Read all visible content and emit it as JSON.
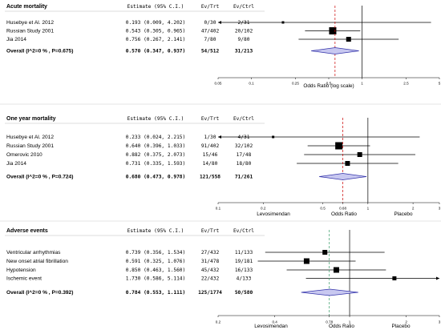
{
  "chart_data": [
    {
      "type": "forest",
      "title": "Acute mortality",
      "column_headers": [
        "Estimate (95% C.I.)",
        "Ev/Trt",
        "Ev/Ctrl"
      ],
      "scale": "log",
      "xlabel": "Odds Ratio (log scale)",
      "xlim": [
        0.05,
        5
      ],
      "ticks": [
        "0.05",
        "0.1",
        "0.25",
        "0.5",
        "1",
        "2.5",
        "5"
      ],
      "null_line": 1,
      "pooled_line": 0.57,
      "pooled_line_label": "",
      "xlabel_left": "",
      "xlabel_right": "",
      "studies": [
        {
          "name": "Husebye et Al. 2012",
          "estimate": "0.193 (0.009, 4.202)",
          "ev_trt": "0/30",
          "ev_ctrl": "2/31",
          "or": 0.193,
          "lo": 0.009,
          "hi": 4.202,
          "box": 3
        },
        {
          "name": "Russian Study 2001",
          "estimate": "0.543 (0.305, 0.965)",
          "ev_trt": "47/402",
          "ev_ctrl": "20/102",
          "or": 0.543,
          "lo": 0.305,
          "hi": 0.965,
          "box": 9
        },
        {
          "name": "Jia 2014",
          "estimate": "0.756 (0.267, 2.141)",
          "ev_trt": "7/80",
          "ev_ctrl": "9/80",
          "or": 0.756,
          "lo": 0.267,
          "hi": 2.141,
          "box": 6
        }
      ],
      "overall": {
        "label": "Overall (I^2=0 % , P=0.675)",
        "estimate": "0.570 (0.347, 0.937)",
        "ev_trt": "54/512",
        "ev_ctrl": "31/213",
        "or": 0.57,
        "lo": 0.347,
        "hi": 0.937
      }
    },
    {
      "type": "forest",
      "title": "One year mortality",
      "column_headers": [
        "Estimate (95% C.I.)",
        "Ev/Trt",
        "Ev/Ctrl"
      ],
      "scale": "log",
      "xlabel": "Odds Ratio",
      "xlim": [
        0.1,
        3
      ],
      "ticks": [
        "0.1",
        "0.2",
        "0.5",
        "0.68",
        "1",
        "2",
        "3"
      ],
      "null_line": 1,
      "pooled_line": 0.68,
      "pooled_line_label": "0.68",
      "xlabel_left": "Levosimendan",
      "xlabel_right": "Placebo",
      "studies": [
        {
          "name": "Husebye et Al. 2012",
          "estimate": "0.233 (0.024, 2.215)",
          "ev_trt": "1/30",
          "ev_ctrl": "4/31",
          "or": 0.233,
          "lo": 0.024,
          "hi": 2.215,
          "box": 3
        },
        {
          "name": "Russian Study 2001",
          "estimate": "0.640 (0.396, 1.033)",
          "ev_trt": "91/402",
          "ev_ctrl": "32/102",
          "or": 0.64,
          "lo": 0.396,
          "hi": 1.033,
          "box": 9
        },
        {
          "name": "Omerovic 2010",
          "estimate": "0.882 (0.375, 2.073)",
          "ev_trt": "15/46",
          "ev_ctrl": "17/48",
          "or": 0.882,
          "lo": 0.375,
          "hi": 2.073,
          "box": 6
        },
        {
          "name": "Jia 2014",
          "estimate": "0.731 (0.335, 1.593)",
          "ev_trt": "14/80",
          "ev_ctrl": "18/80",
          "or": 0.731,
          "lo": 0.335,
          "hi": 1.593,
          "box": 6
        }
      ],
      "overall": {
        "label": "Overall (I^2=0 % , P=0.724)",
        "estimate": "0.680 (0.473, 0.978)",
        "ev_trt": "121/558",
        "ev_ctrl": "71/261",
        "or": 0.68,
        "lo": 0.473,
        "hi": 0.978
      }
    },
    {
      "type": "forest",
      "title": "Adverse events",
      "column_headers": [
        "Estimate (95% C.I.)",
        "Ev/Trt",
        "Ev/Ctrl"
      ],
      "scale": "log",
      "xlabel": "Odds Ratio",
      "xlim": [
        0.2,
        3
      ],
      "ticks": [
        "0.2",
        "0.4",
        "0.78",
        "1",
        "2",
        "3"
      ],
      "null_line": 1,
      "pooled_line": 0.78,
      "pooled_line_label": "0.78",
      "xlabel_left": "Levosimendan",
      "xlabel_right": "Placebo",
      "studies": [
        {
          "name": "Ventricular arrhythmias",
          "estimate": "0.739 (0.356, 1.534)",
          "ev_trt": "27/432",
          "ev_ctrl": "11/133",
          "or": 0.739,
          "lo": 0.356,
          "hi": 1.534,
          "box": 6
        },
        {
          "name": "New onset atrial fibrillation",
          "estimate": "0.591 (0.325, 1.076)",
          "ev_trt": "31/478",
          "ev_ctrl": "19/181",
          "or": 0.591,
          "lo": 0.325,
          "hi": 1.076,
          "box": 7
        },
        {
          "name": "Hypotension",
          "estimate": "0.850 (0.463, 1.560)",
          "ev_trt": "45/432",
          "ev_ctrl": "16/133",
          "or": 0.85,
          "lo": 0.463,
          "hi": 1.56,
          "box": 7
        },
        {
          "name": "Ischemic event",
          "estimate": "1.730 (0.586, 5.114)",
          "ev_trt": "22/432",
          "ev_ctrl": "4/133",
          "or": 1.73,
          "lo": 0.586,
          "hi": 5.114,
          "box": 5
        }
      ],
      "overall": {
        "label": "Overall (I^2=0 % , P=0.392)",
        "estimate": "0.784 (0.553, 1.111)",
        "ev_trt": "125/1774",
        "ev_ctrl": "50/580",
        "or": 0.784,
        "lo": 0.553,
        "hi": 1.111
      }
    }
  ],
  "colors": {
    "text": "#000000",
    "pooled_line": "#cc0000",
    "pooled_line_adverse": "#339966",
    "diamond_fill": "#c8c8f0",
    "diamond_stroke": "#3333aa",
    "separator": "#888888"
  }
}
